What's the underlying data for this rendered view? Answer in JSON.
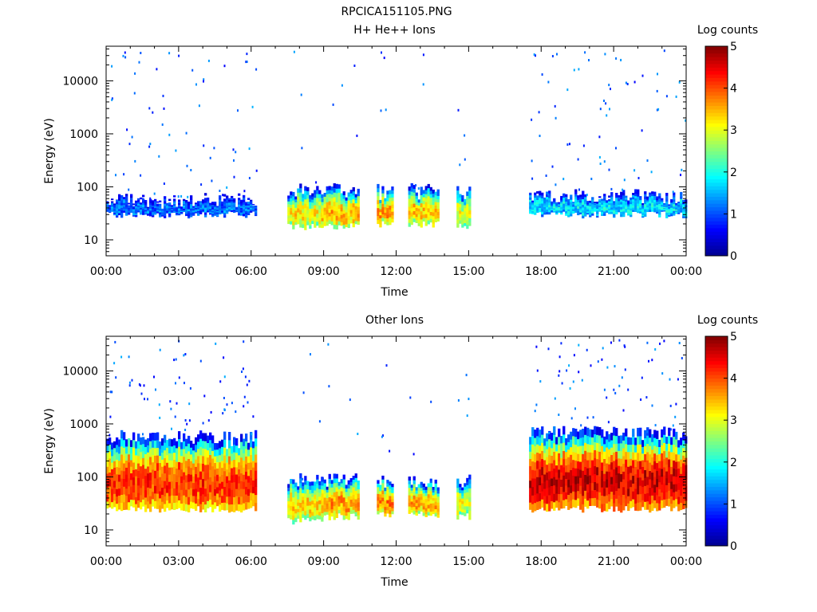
{
  "page_title": "RPCICA151105.PNG",
  "chart_data": [
    {
      "type": "heatmap",
      "title": "H+ He++ Ions",
      "xlabel": "Time",
      "ylabel": "Energy (eV)",
      "y_scale": "log",
      "ylim": [
        5,
        45000
      ],
      "x_ticks": [
        "00:00",
        "03:00",
        "06:00",
        "09:00",
        "12:00",
        "15:00",
        "18:00",
        "21:00",
        "00:00"
      ],
      "y_ticks": [
        {
          "value": 10,
          "label": "10"
        },
        {
          "value": 100,
          "label": "100"
        },
        {
          "value": 1000,
          "label": "1000"
        },
        {
          "value": 10000,
          "label": "10000"
        }
      ],
      "colorbar": {
        "label": "Log counts",
        "range": [
          0,
          5
        ],
        "ticks": [
          "0",
          "1",
          "2",
          "3",
          "4",
          "5"
        ]
      },
      "colormap": [
        "#00008f",
        "#0000ff",
        "#007fff",
        "#00ffff",
        "#7fff7f",
        "#ffff00",
        "#ff7f00",
        "#ff0000",
        "#7f0000"
      ],
      "blocks": [
        {
          "start_hour": 0.0,
          "end_hour": 6.2,
          "band_low_eV": 30,
          "band_high_eV": 60,
          "intensity": 1.2
        },
        {
          "start_hour": 7.5,
          "end_hour": 8.9,
          "band_low_eV": 18,
          "band_high_eV": 90,
          "intensity": 3.2
        },
        {
          "start_hour": 8.9,
          "end_hour": 10.4,
          "band_low_eV": 18,
          "band_high_eV": 90,
          "intensity": 3.5
        },
        {
          "start_hour": 11.2,
          "end_hour": 11.8,
          "band_low_eV": 20,
          "band_high_eV": 90,
          "intensity": 3.6
        },
        {
          "start_hour": 12.5,
          "end_hour": 13.7,
          "band_low_eV": 20,
          "band_high_eV": 90,
          "intensity": 3.4
        },
        {
          "start_hour": 14.5,
          "end_hour": 15.0,
          "band_low_eV": 18,
          "band_high_eV": 90,
          "intensity": 3.0
        },
        {
          "start_hour": 17.5,
          "end_hour": 24.0,
          "band_low_eV": 30,
          "band_high_eV": 70,
          "intensity": 1.8
        }
      ]
    },
    {
      "type": "heatmap",
      "title": "Other Ions",
      "xlabel": "Time",
      "ylabel": "Energy (eV)",
      "y_scale": "log",
      "ylim": [
        5,
        45000
      ],
      "x_ticks": [
        "00:00",
        "03:00",
        "06:00",
        "09:00",
        "12:00",
        "15:00",
        "18:00",
        "21:00",
        "00:00"
      ],
      "y_ticks": [
        {
          "value": 10,
          "label": "10"
        },
        {
          "value": 100,
          "label": "100"
        },
        {
          "value": 1000,
          "label": "1000"
        },
        {
          "value": 10000,
          "label": "10000"
        }
      ],
      "colorbar": {
        "label": "Log counts",
        "range": [
          0,
          5
        ],
        "ticks": [
          "0",
          "1",
          "2",
          "3",
          "4",
          "5"
        ]
      },
      "colormap": [
        "#00008f",
        "#0000ff",
        "#007fff",
        "#00ffff",
        "#7fff7f",
        "#ffff00",
        "#ff7f00",
        "#ff0000",
        "#7f0000"
      ],
      "blocks": [
        {
          "start_hour": 0.0,
          "end_hour": 6.2,
          "band_low_eV": 25,
          "band_high_eV": 600,
          "intensity": 4.2
        },
        {
          "start_hour": 7.5,
          "end_hour": 8.9,
          "band_low_eV": 15,
          "band_high_eV": 90,
          "intensity": 3.3
        },
        {
          "start_hour": 8.9,
          "end_hour": 10.4,
          "band_low_eV": 18,
          "band_high_eV": 90,
          "intensity": 3.6
        },
        {
          "start_hour": 11.2,
          "end_hour": 11.8,
          "band_low_eV": 20,
          "band_high_eV": 90,
          "intensity": 3.7
        },
        {
          "start_hour": 12.5,
          "end_hour": 13.7,
          "band_low_eV": 20,
          "band_high_eV": 90,
          "intensity": 3.5
        },
        {
          "start_hour": 14.5,
          "end_hour": 15.0,
          "band_low_eV": 18,
          "band_high_eV": 90,
          "intensity": 3.1
        },
        {
          "start_hour": 17.5,
          "end_hour": 24.0,
          "band_low_eV": 25,
          "band_high_eV": 700,
          "intensity": 4.6
        }
      ]
    }
  ]
}
